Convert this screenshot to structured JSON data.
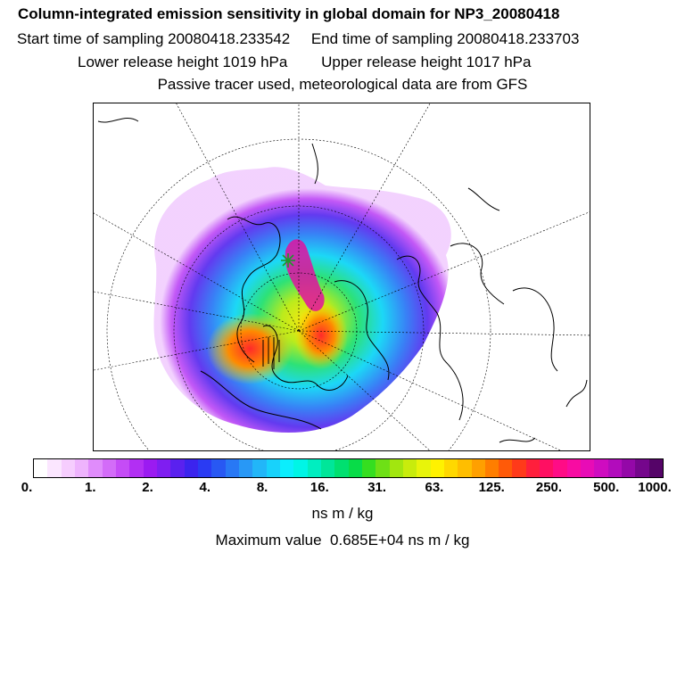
{
  "header": {
    "title": "Column-integrated emission sensitivity in global domain for NP3_20080418",
    "start_time": "Start time of sampling 20080418.233542",
    "end_time": "End time of sampling 20080418.233703",
    "lower_release": "Lower release height 1019 hPa",
    "upper_release": "Upper release height 1017 hPa",
    "tracer_note": "Passive tracer used, meteorological data are from GFS"
  },
  "map": {
    "projection": "polar-stereographic",
    "features": [
      "coastlines",
      "graticule",
      "emission-sensitivity-field",
      "release-location-marker"
    ]
  },
  "colorbar": {
    "colors": [
      "#ffffff",
      "#fbe6ff",
      "#f6cdfe",
      "#eeb3fd",
      "#e08cfb",
      "#d36cf8",
      "#c54cf6",
      "#b22ff3",
      "#9b1bf1",
      "#7f1ef1",
      "#5a21ef",
      "#3b24ee",
      "#2a3bf3",
      "#2858f3",
      "#2878f5",
      "#2898f6",
      "#22b6f8",
      "#18d2fb",
      "#0beefd",
      "#00f5e6",
      "#00eec0",
      "#00e699",
      "#00e070",
      "#08dc48",
      "#35de20",
      "#6ee016",
      "#a2e60f",
      "#c8ec0c",
      "#e8f40a",
      "#fff200",
      "#ffd800",
      "#ffbe00",
      "#ffa000",
      "#ff7e00",
      "#ff5a08",
      "#ff3a1a",
      "#ff1f3c",
      "#ff0f62",
      "#ff0c86",
      "#f80ca2",
      "#e80cb6",
      "#cf0cc0",
      "#b20cbc",
      "#9408a8",
      "#75068c",
      "#550468"
    ],
    "tick_labels": [
      "0.",
      "1.",
      "2.",
      "4.",
      "8.",
      "16.",
      "31.",
      "63.",
      "125.",
      "250.",
      "500.",
      "1000."
    ],
    "unit": "ns m / kg"
  },
  "footer": {
    "max_value": "Maximum value  0.685E+04 ns m / kg"
  }
}
